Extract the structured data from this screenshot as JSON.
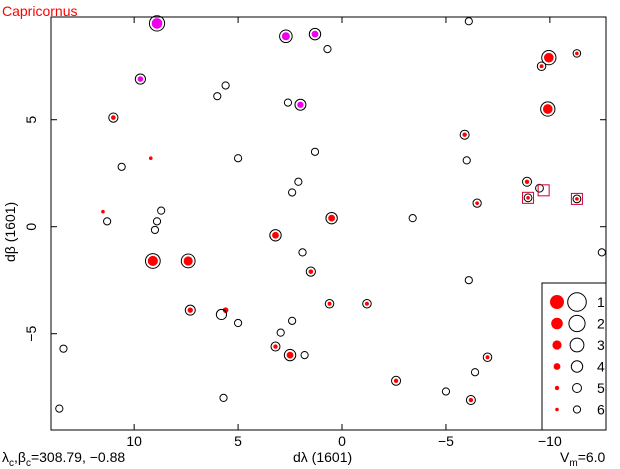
{
  "chart_data": {
    "type": "scatter",
    "title": "Capricornus",
    "xlabel": "dλ (1601)",
    "ylabel": "dβ (1601)",
    "xlim": [
      14,
      -12.7
    ],
    "ylim": [
      -9.5,
      9.8
    ],
    "xticks": [
      10,
      5,
      0,
      -5,
      -10
    ],
    "yticks": [
      5,
      0,
      -5
    ],
    "center_label": "λc,βc=308.79, −0.88",
    "center_parts": {
      "lam": "λ",
      "c1": "c",
      "beta": "β",
      "c2": "c",
      "value": "=308.79, −0.88"
    },
    "vlim_label": "Vm=6.0",
    "vlim_parts": {
      "v": "V",
      "m": "m",
      "value": "=6.0"
    },
    "legend": {
      "placement": "bottom-right",
      "entries": [
        {
          "label": "1",
          "mag": 1
        },
        {
          "label": "2",
          "mag": 2
        },
        {
          "label": "3",
          "mag": 3
        },
        {
          "label": "4",
          "mag": 4
        },
        {
          "label": "5",
          "mag": 5
        },
        {
          "label": "6",
          "mag": 6
        }
      ]
    },
    "colors": {
      "red": "#ff0000",
      "magenta": "#ee00ee",
      "black": "#000000",
      "square": "#cc0033"
    },
    "stars": [
      {
        "x": 8.9,
        "y": 9.5,
        "mag": 2.4,
        "kind": "magenta"
      },
      {
        "x": 1.3,
        "y": 9.0,
        "mag": 4.0,
        "kind": "magenta"
      },
      {
        "x": 2.7,
        "y": 8.9,
        "mag": 3.5,
        "kind": "magenta"
      },
      {
        "x": 9.7,
        "y": 6.9,
        "mag": 4.5,
        "kind": "magenta"
      },
      {
        "x": 2.0,
        "y": 5.7,
        "mag": 4.2,
        "kind": "magenta"
      },
      {
        "x": 11.0,
        "y": 5.1,
        "mag": 4.9,
        "kind": "red"
      },
      {
        "x": 9.2,
        "y": 3.2,
        "mag": 5.5,
        "kind": "redonly"
      },
      {
        "x": -6.1,
        "y": 9.6,
        "mag": 6.0,
        "kind": "open"
      },
      {
        "x": 0.7,
        "y": 8.3,
        "mag": 6.0,
        "kind": "open"
      },
      {
        "x": 5.6,
        "y": 6.6,
        "mag": 6.0,
        "kind": "open"
      },
      {
        "x": 6.0,
        "y": 6.1,
        "mag": 6.0,
        "kind": "open"
      },
      {
        "x": 2.6,
        "y": 5.8,
        "mag": 6.0,
        "kind": "open"
      },
      {
        "x": -9.95,
        "y": 7.9,
        "mag": 2.8,
        "kind": "red"
      },
      {
        "x": -9.6,
        "y": 7.5,
        "mag": 5.2,
        "kind": "red"
      },
      {
        "x": -11.3,
        "y": 8.1,
        "mag": 5.6,
        "kind": "red"
      },
      {
        "x": -9.9,
        "y": 5.5,
        "mag": 2.8,
        "kind": "red"
      },
      {
        "x": -5.9,
        "y": 4.3,
        "mag": 5.0,
        "kind": "red"
      },
      {
        "x": 5.0,
        "y": 3.2,
        "mag": 6.0,
        "kind": "open"
      },
      {
        "x": 1.3,
        "y": 3.5,
        "mag": 6.0,
        "kind": "open"
      },
      {
        "x": -6.0,
        "y": 3.1,
        "mag": 6.0,
        "kind": "open"
      },
      {
        "x": 10.6,
        "y": 2.8,
        "mag": 6.0,
        "kind": "open"
      },
      {
        "x": -8.9,
        "y": 2.1,
        "mag": 5.0,
        "kind": "red"
      },
      {
        "x": -9.5,
        "y": 1.8,
        "mag": 5.5,
        "kind": "open"
      },
      {
        "x": -6.5,
        "y": 1.1,
        "mag": 5.3,
        "kind": "red"
      },
      {
        "x": 2.1,
        "y": 2.1,
        "mag": 6.0,
        "kind": "open"
      },
      {
        "x": 2.4,
        "y": 1.6,
        "mag": 6.0,
        "kind": "open"
      },
      {
        "x": 11.5,
        "y": 0.7,
        "mag": 5.6,
        "kind": "redonly"
      },
      {
        "x": 11.3,
        "y": 0.25,
        "mag": 6.0,
        "kind": "open"
      },
      {
        "x": 8.7,
        "y": 0.75,
        "mag": 6.0,
        "kind": "open"
      },
      {
        "x": 8.9,
        "y": 0.25,
        "mag": 6.0,
        "kind": "open"
      },
      {
        "x": 9.0,
        "y": -0.15,
        "mag": 6.0,
        "kind": "open"
      },
      {
        "x": 0.5,
        "y": 0.4,
        "mag": 4.0,
        "kind": "red"
      },
      {
        "x": -3.4,
        "y": 0.4,
        "mag": 6.0,
        "kind": "open"
      },
      {
        "x": 3.2,
        "y": -0.4,
        "mag": 4.0,
        "kind": "red"
      },
      {
        "x": 9.1,
        "y": -1.6,
        "mag": 2.6,
        "kind": "red"
      },
      {
        "x": 7.4,
        "y": -1.6,
        "mag": 3.0,
        "kind": "red"
      },
      {
        "x": 1.9,
        "y": -1.2,
        "mag": 6.0,
        "kind": "open"
      },
      {
        "x": -12.5,
        "y": -1.2,
        "mag": 6.0,
        "kind": "open"
      },
      {
        "x": 1.5,
        "y": -2.1,
        "mag": 4.9,
        "kind": "red"
      },
      {
        "x": -6.1,
        "y": -2.5,
        "mag": 6.0,
        "kind": "open"
      },
      {
        "x": 7.3,
        "y": -3.9,
        "mag": 4.6,
        "kind": "red"
      },
      {
        "x": 5.6,
        "y": -3.9,
        "mag": 4.5,
        "kind": "redonly"
      },
      {
        "x": 5.8,
        "y": -4.1,
        "mag": 4.5,
        "kind": "open"
      },
      {
        "x": 0.6,
        "y": -3.6,
        "mag": 5.2,
        "kind": "red"
      },
      {
        "x": -1.2,
        "y": -3.6,
        "mag": 5.2,
        "kind": "red"
      },
      {
        "x": 2.4,
        "y": -4.4,
        "mag": 6.0,
        "kind": "open"
      },
      {
        "x": 5.0,
        "y": -4.5,
        "mag": 6.0,
        "kind": "open"
      },
      {
        "x": 2.95,
        "y": -4.95,
        "mag": 6.0,
        "kind": "open"
      },
      {
        "x": 3.2,
        "y": -5.6,
        "mag": 5.0,
        "kind": "red"
      },
      {
        "x": 2.5,
        "y": -6.0,
        "mag": 4.0,
        "kind": "red"
      },
      {
        "x": 1.8,
        "y": -6.0,
        "mag": 6.0,
        "kind": "open"
      },
      {
        "x": -7.0,
        "y": -6.1,
        "mag": 5.2,
        "kind": "red"
      },
      {
        "x": -6.4,
        "y": -6.8,
        "mag": 6.0,
        "kind": "open"
      },
      {
        "x": -2.6,
        "y": -7.2,
        "mag": 5.0,
        "kind": "red"
      },
      {
        "x": -5.0,
        "y": -7.7,
        "mag": 6.0,
        "kind": "open"
      },
      {
        "x": -6.2,
        "y": -8.1,
        "mag": 5.0,
        "kind": "red"
      },
      {
        "x": 5.7,
        "y": -8.0,
        "mag": 6.0,
        "kind": "open"
      },
      {
        "x": 13.4,
        "y": -5.7,
        "mag": 6.0,
        "kind": "open"
      },
      {
        "x": 13.6,
        "y": -8.5,
        "mag": 6.0,
        "kind": "open"
      }
    ],
    "squares": [
      {
        "x": -8.95,
        "y": 1.35
      },
      {
        "x": -9.7,
        "y": 1.7
      },
      {
        "x": -11.3,
        "y": 1.3
      }
    ],
    "square_stars": [
      {
        "x": -8.95,
        "y": 1.35,
        "mag": 5.5,
        "kind": "red"
      },
      {
        "x": -11.3,
        "y": 1.3,
        "mag": 5.5,
        "kind": "red"
      }
    ]
  }
}
